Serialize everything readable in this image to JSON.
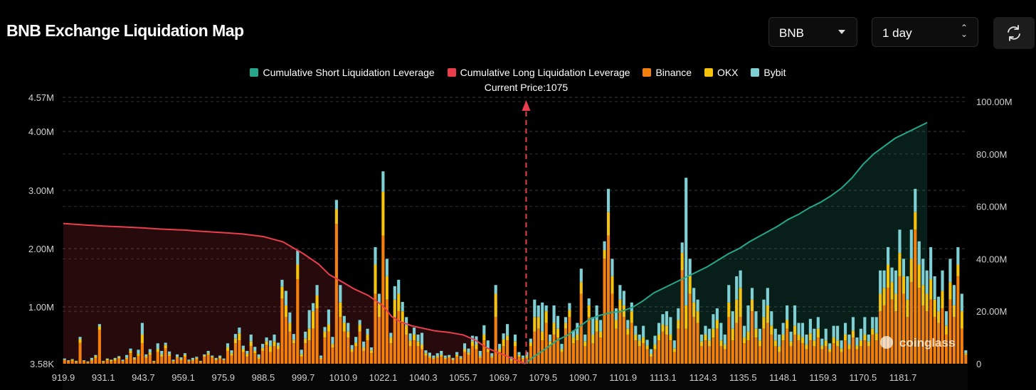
{
  "header": {
    "title": "BNB Exchange Liquidation Map",
    "symbol_select": "BNB",
    "period_select": "1 day"
  },
  "colors": {
    "short_cum": "#26a68a",
    "long_cum": "#ea3e4c",
    "binance": "#f57f0c",
    "okx": "#f5c20c",
    "bybit": "#7fd0d4",
    "background": "#000000"
  },
  "chart_data": {
    "type": "bar",
    "title": "BNB Exchange Liquidation Map",
    "current_price_label": "Current Price:1075",
    "current_price": 1075,
    "legend": [
      {
        "name": "Cumulative Short Liquidation Leverage",
        "color": "#26a68a"
      },
      {
        "name": "Cumulative Long Liquidation Leverage",
        "color": "#ea3e4c"
      },
      {
        "name": "Binance",
        "color": "#f57f0c"
      },
      {
        "name": "OKX",
        "color": "#f5c20c"
      },
      {
        "name": "Bybit",
        "color": "#7fd0d4"
      }
    ],
    "x_ticks": [
      "919.9",
      "931.1",
      "943.7",
      "959.1",
      "975.9",
      "988.5",
      "999.7",
      "1010.9",
      "1022.1",
      "1040.3",
      "1055.7",
      "1069.7",
      "1079.5",
      "1090.7",
      "1101.9",
      "1113.1",
      "1124.3",
      "1135.5",
      "1148.1",
      "1159.3",
      "1170.5",
      "1181.7"
    ],
    "y_left_ticks": [
      "3.58K",
      "1.00M",
      "2.00M",
      "3.00M",
      "4.00M",
      "4.57M"
    ],
    "y_left_tick_values": [
      3580,
      1000000,
      2000000,
      3000000,
      4000000,
      4570000
    ],
    "y_left_range": [
      3580,
      4570000
    ],
    "y_right_ticks": [
      "0",
      "20.00M",
      "40.00M",
      "60.00M",
      "80.00M",
      "100.00M"
    ],
    "y_right_tick_values": [
      0,
      20000000,
      40000000,
      60000000,
      80000000,
      100000000
    ],
    "y_right_range": [
      0,
      100000000
    ],
    "grid": true,
    "bars_note": "stacked Binance / OKX / Bybit liquidation volume per price level (approximate)",
    "bars": [
      [
        0.06,
        0.01,
        0.02
      ],
      [
        0.04,
        0.01,
        0.01
      ],
      [
        0.05,
        0.02,
        0.01
      ],
      [
        0.03,
        0.01,
        0.01
      ],
      [
        0.36,
        0.06,
        0.04
      ],
      [
        0.04,
        0.01,
        0.01
      ],
      [
        0.02,
        0.01,
        0.01
      ],
      [
        0.05,
        0.02,
        0.03
      ],
      [
        0.1,
        0.03,
        0.02
      ],
      [
        0.58,
        0.06,
        0.04
      ],
      [
        0.03,
        0.01,
        0.01
      ],
      [
        0.06,
        0.02,
        0.01
      ],
      [
        0.04,
        0.02,
        0.01
      ],
      [
        0.05,
        0.03,
        0.02
      ],
      [
        0.09,
        0.02,
        0.02
      ],
      [
        0.04,
        0.01,
        0.02
      ],
      [
        0.08,
        0.02,
        0.05
      ],
      [
        0.18,
        0.04,
        0.04
      ],
      [
        0.07,
        0.02,
        0.02
      ],
      [
        0.13,
        0.04,
        0.07
      ],
      [
        0.35,
        0.15,
        0.2
      ],
      [
        0.1,
        0.03,
        0.03
      ],
      [
        0.15,
        0.04,
        0.06
      ],
      [
        0.03,
        0.01,
        0.01
      ],
      [
        0.2,
        0.05,
        0.1
      ],
      [
        0.12,
        0.04,
        0.06
      ],
      [
        0.26,
        0.06,
        0.04
      ],
      [
        0.13,
        0.03,
        0.05
      ],
      [
        0.04,
        0.01,
        0.02
      ],
      [
        0.1,
        0.02,
        0.04
      ],
      [
        0.06,
        0.02,
        0.03
      ],
      [
        0.12,
        0.03,
        0.03
      ],
      [
        0.04,
        0.01,
        0.02
      ],
      [
        0.05,
        0.02,
        0.03
      ],
      [
        0.08,
        0.02,
        0.02
      ],
      [
        0.03,
        0.01,
        0.01
      ],
      [
        0.12,
        0.02,
        0.02
      ],
      [
        0.15,
        0.03,
        0.04
      ],
      [
        0.1,
        0.02,
        0.02
      ],
      [
        0.06,
        0.02,
        0.02
      ],
      [
        0.09,
        0.02,
        0.03
      ],
      [
        0.06,
        0.01,
        0.02
      ],
      [
        0.22,
        0.06,
        0.07
      ],
      [
        0.14,
        0.04,
        0.05
      ],
      [
        0.35,
        0.08,
        0.08
      ],
      [
        0.4,
        0.12,
        0.1
      ],
      [
        0.2,
        0.05,
        0.06
      ],
      [
        0.12,
        0.05,
        0.05
      ],
      [
        0.3,
        0.08,
        0.12
      ],
      [
        0.18,
        0.04,
        0.07
      ],
      [
        0.08,
        0.03,
        0.05
      ],
      [
        0.22,
        0.05,
        0.07
      ],
      [
        0.32,
        0.06,
        0.07
      ],
      [
        0.2,
        0.1,
        0.1
      ],
      [
        0.3,
        0.08,
        0.12
      ],
      [
        0.25,
        0.06,
        0.05
      ],
      [
        1.12,
        0.2,
        0.12
      ],
      [
        0.8,
        0.2,
        0.25
      ],
      [
        0.55,
        0.15,
        0.18
      ],
      [
        0.35,
        0.06,
        0.1
      ],
      [
        1.45,
        0.25,
        0.24
      ],
      [
        0.12,
        0.04,
        0.08
      ],
      [
        0.35,
        0.08,
        0.12
      ],
      [
        0.4,
        0.2,
        0.32
      ],
      [
        0.6,
        0.3,
        0.14
      ],
      [
        0.95,
        0.22,
        0.18
      ],
      [
        0.08,
        0.02,
        0.04
      ],
      [
        0.45,
        0.1,
        0.08
      ],
      [
        0.55,
        0.12,
        0.26
      ],
      [
        0.28,
        0.06,
        0.12
      ],
      [
        2.4,
        0.25,
        0.16
      ],
      [
        0.8,
        0.25,
        0.3
      ],
      [
        0.55,
        0.15,
        0.12
      ],
      [
        0.45,
        0.1,
        0.15
      ],
      [
        0.2,
        0.05,
        0.07
      ],
      [
        0.3,
        0.06,
        0.1
      ],
      [
        0.55,
        0.12,
        0.08
      ],
      [
        0.22,
        0.06,
        0.1
      ],
      [
        0.4,
        0.1,
        0.1
      ],
      [
        0.18,
        0.05,
        0.05
      ],
      [
        1.2,
        0.5,
        0.3
      ],
      [
        0.8,
        0.25,
        0.15
      ],
      [
        2.2,
        0.75,
        0.35
      ],
      [
        1.1,
        0.4,
        0.3
      ],
      [
        0.35,
        0.1,
        0.08
      ],
      [
        0.8,
        0.3,
        0.23
      ],
      [
        0.9,
        0.3,
        0.24
      ],
      [
        0.7,
        0.2,
        0.16
      ],
      [
        0.5,
        0.15,
        0.15
      ],
      [
        0.3,
        0.1,
        0.12
      ],
      [
        0.4,
        0.1,
        0.12
      ],
      [
        0.3,
        0.08,
        0.12
      ],
      [
        0.25,
        0.08,
        0.2
      ],
      [
        0.14,
        0.04,
        0.05
      ],
      [
        0.1,
        0.03,
        0.06
      ],
      [
        0.08,
        0.02,
        0.04
      ],
      [
        0.1,
        0.03,
        0.05
      ],
      [
        0.12,
        0.03,
        0.07
      ],
      [
        0.08,
        0.02,
        0.04
      ],
      [
        0.1,
        0.02,
        0.03
      ],
      [
        0.06,
        0.02,
        0.02
      ],
      [
        0.12,
        0.03,
        0.05
      ],
      [
        0.08,
        0.02,
        0.03
      ],
      [
        0.2,
        0.05,
        0.1
      ],
      [
        0.15,
        0.04,
        0.07
      ],
      [
        0.3,
        0.08,
        0.1
      ],
      [
        0.25,
        0.08,
        0.14
      ],
      [
        0.1,
        0.03,
        0.09
      ],
      [
        0.4,
        0.1,
        0.16
      ],
      [
        0.2,
        0.06,
        0.14
      ],
      [
        0.1,
        0.03,
        0.05
      ],
      [
        0.8,
        0.4,
        0.15
      ],
      [
        0.2,
        0.05,
        0.09
      ],
      [
        0.3,
        0.12,
        0.1
      ],
      [
        0.4,
        0.08,
        0.2
      ],
      [
        0.05,
        0.02,
        0.05
      ],
      [
        0.3,
        0.08,
        0.12
      ],
      [
        0.12,
        0.03,
        0.05
      ],
      [
        0.08,
        0.02,
        0.04
      ],
      [
        0.1,
        0.03,
        0.07
      ],
      [
        0.3,
        0.06,
        0.07
      ],
      [
        0.55,
        0.25,
        0.3
      ],
      [
        0.6,
        0.2,
        0.2
      ],
      [
        0.4,
        0.15,
        0.5
      ],
      [
        0.7,
        0.2,
        0.1
      ],
      [
        0.3,
        0.08,
        0.12
      ],
      [
        0.5,
        0.2,
        0.3
      ],
      [
        0.45,
        0.15,
        0.22
      ],
      [
        0.2,
        0.05,
        0.09
      ],
      [
        0.6,
        0.1,
        0.1
      ],
      [
        0.8,
        0.12,
        0.12
      ],
      [
        0.35,
        0.1,
        0.12
      ],
      [
        0.4,
        0.1,
        0.2
      ],
      [
        1.2,
        0.2,
        0.23
      ],
      [
        0.3,
        0.08,
        0.12
      ],
      [
        0.8,
        0.2,
        0.12
      ],
      [
        0.35,
        0.15,
        0.3
      ],
      [
        0.55,
        0.2,
        0.25
      ],
      [
        0.45,
        0.1,
        0.2
      ],
      [
        1.8,
        0.15,
        0.15
      ],
      [
        2.2,
        0.4,
        0.4
      ],
      [
        1.2,
        0.3,
        0.3
      ],
      [
        0.6,
        0.15,
        0.2
      ],
      [
        0.9,
        0.2,
        0.25
      ],
      [
        0.8,
        0.2,
        0.25
      ],
      [
        0.5,
        0.1,
        0.15
      ],
      [
        0.7,
        0.2,
        0.15
      ],
      [
        0.4,
        0.1,
        0.15
      ],
      [
        0.3,
        0.1,
        0.1
      ],
      [
        0.35,
        0.1,
        0.2
      ],
      [
        0.25,
        0.06,
        0.1
      ],
      [
        0.12,
        0.05,
        0.08
      ],
      [
        0.25,
        0.08,
        0.15
      ],
      [
        0.4,
        0.1,
        0.2
      ],
      [
        0.55,
        0.12,
        0.18
      ],
      [
        0.5,
        0.15,
        0.25
      ],
      [
        0.4,
        0.1,
        0.3
      ],
      [
        0.2,
        0.06,
        0.14
      ],
      [
        0.6,
        0.15,
        0.2
      ],
      [
        1.6,
        0.3,
        0.18
      ],
      [
        0.6,
        0.4,
        2.19
      ],
      [
        1.2,
        0.3,
        0.3
      ],
      [
        0.8,
        0.25,
        0.25
      ],
      [
        0.7,
        0.2,
        0.2
      ],
      [
        0.3,
        0.08,
        0.12
      ],
      [
        0.4,
        0.1,
        0.15
      ],
      [
        0.3,
        0.1,
        0.2
      ],
      [
        0.45,
        0.15,
        0.25
      ],
      [
        0.6,
        0.15,
        0.2
      ],
      [
        0.3,
        0.1,
        0.3
      ],
      [
        0.25,
        0.08,
        0.17
      ],
      [
        0.8,
        0.25,
        0.3
      ],
      [
        0.4,
        0.2,
        0.3
      ],
      [
        0.7,
        0.4,
        0.4
      ],
      [
        0.8,
        0.5,
        0.3
      ],
      [
        0.35,
        0.1,
        0.2
      ],
      [
        0.4,
        0.15,
        0.45
      ],
      [
        0.9,
        0.2,
        0.2
      ],
      [
        0.45,
        0.15,
        0.3
      ],
      [
        0.3,
        0.1,
        0.2
      ],
      [
        0.6,
        0.2,
        0.3
      ],
      [
        0.7,
        0.3,
        0.3
      ],
      [
        0.5,
        0.15,
        0.25
      ],
      [
        0.3,
        0.1,
        0.2
      ],
      [
        0.2,
        0.1,
        0.2
      ],
      [
        0.4,
        0.1,
        0.2
      ],
      [
        0.6,
        0.15,
        0.25
      ],
      [
        0.3,
        0.08,
        0.17
      ],
      [
        0.5,
        0.15,
        0.35
      ],
      [
        0.4,
        0.1,
        0.2
      ],
      [
        0.35,
        0.1,
        0.25
      ],
      [
        0.25,
        0.08,
        0.17
      ],
      [
        0.4,
        0.12,
        0.25
      ],
      [
        0.3,
        0.1,
        0.2
      ],
      [
        0.45,
        0.15,
        0.2
      ],
      [
        0.25,
        0.06,
        0.12
      ],
      [
        0.3,
        0.1,
        0.2
      ],
      [
        0.2,
        0.05,
        0.1
      ],
      [
        0.35,
        0.1,
        0.2
      ],
      [
        0.3,
        0.1,
        0.25
      ],
      [
        0.2,
        0.06,
        0.14
      ],
      [
        0.4,
        0.1,
        0.2
      ],
      [
        0.25,
        0.08,
        0.17
      ],
      [
        0.45,
        0.12,
        0.23
      ],
      [
        0.25,
        0.06,
        0.14
      ],
      [
        0.3,
        0.1,
        0.2
      ],
      [
        0.4,
        0.1,
        0.3
      ],
      [
        0.3,
        0.08,
        0.12
      ],
      [
        0.5,
        0.1,
        0.2
      ],
      [
        0.4,
        0.12,
        0.28
      ],
      [
        0.9,
        0.3,
        0.4
      ],
      [
        1.0,
        0.3,
        0.3
      ],
      [
        1.3,
        0.4,
        0.3
      ],
      [
        1.1,
        0.3,
        0.25
      ],
      [
        0.9,
        0.3,
        0.4
      ],
      [
        1.5,
        0.4,
        0.4
      ],
      [
        1.2,
        0.3,
        0.3
      ],
      [
        0.8,
        0.3,
        0.4
      ],
      [
        1.4,
        0.4,
        0.5
      ],
      [
        2.3,
        0.3,
        0.4
      ],
      [
        1.3,
        0.4,
        0.4
      ],
      [
        1.0,
        0.35,
        0.45
      ],
      [
        0.9,
        0.3,
        0.4
      ],
      [
        1.1,
        0.35,
        0.55
      ],
      [
        0.8,
        0.3,
        0.4
      ],
      [
        0.7,
        0.2,
        0.25
      ],
      [
        0.95,
        0.3,
        0.35
      ],
      [
        0.5,
        0.15,
        0.25
      ],
      [
        1.1,
        0.3,
        0.4
      ],
      [
        0.8,
        0.2,
        0.35
      ],
      [
        1.5,
        0.2,
        0.3
      ],
      [
        0.6,
        0.3,
        0.3
      ],
      [
        0.15,
        0.03,
        0.05
      ]
    ],
    "short_cumulative_M": [
      [
        1077.5,
        3
      ],
      [
        1080.5,
        6
      ],
      [
        1083.5,
        9
      ],
      [
        1086.5,
        11
      ],
      [
        1089.5,
        14
      ],
      [
        1092.5,
        17
      ],
      [
        1095.5,
        18.5
      ],
      [
        1098.5,
        19.5
      ],
      [
        1101.5,
        20
      ],
      [
        1104.5,
        21.5
      ],
      [
        1107.5,
        24
      ],
      [
        1110.5,
        27
      ],
      [
        1113.5,
        29
      ],
      [
        1116.5,
        31
      ],
      [
        1119.5,
        33
      ],
      [
        1122.5,
        35
      ],
      [
        1125.5,
        37
      ],
      [
        1128.5,
        39.5
      ],
      [
        1131.5,
        42
      ],
      [
        1134.5,
        44
      ],
      [
        1137.5,
        46.5
      ],
      [
        1140.5,
        48.5
      ],
      [
        1143.5,
        50.5
      ],
      [
        1146.5,
        52.5
      ],
      [
        1149.5,
        55
      ],
      [
        1152.5,
        57
      ],
      [
        1155.5,
        59.5
      ],
      [
        1158.5,
        61.5
      ],
      [
        1161.5,
        64
      ],
      [
        1164.5,
        67
      ],
      [
        1167.5,
        71
      ],
      [
        1170.5,
        76
      ],
      [
        1173.5,
        80
      ],
      [
        1176.5,
        83
      ],
      [
        1179.5,
        86
      ],
      [
        1182.5,
        88
      ],
      [
        1185.5,
        90
      ],
      [
        1188.5,
        92
      ]
    ],
    "long_cumulative_M": [
      [
        919.9,
        53.5
      ],
      [
        925,
        53
      ],
      [
        931.1,
        52.5
      ],
      [
        937,
        52.2
      ],
      [
        943.7,
        51.8
      ],
      [
        950,
        51.4
      ],
      [
        959.1,
        51
      ],
      [
        965,
        50.6
      ],
      [
        975.9,
        50
      ],
      [
        982,
        49.5
      ],
      [
        988.5,
        48.5
      ],
      [
        994,
        46.5
      ],
      [
        999.7,
        42
      ],
      [
        1004,
        38
      ],
      [
        1007,
        34
      ],
      [
        1010.9,
        31
      ],
      [
        1014,
        28.5
      ],
      [
        1018,
        26
      ],
      [
        1022.1,
        22
      ],
      [
        1026,
        18
      ],
      [
        1030,
        16
      ],
      [
        1035,
        14.5
      ],
      [
        1040.3,
        13.5
      ],
      [
        1045,
        12.5
      ],
      [
        1050,
        12
      ],
      [
        1055.7,
        11
      ],
      [
        1060,
        9
      ],
      [
        1064,
        6
      ],
      [
        1069.7,
        3.5
      ],
      [
        1075,
        0
      ]
    ]
  }
}
